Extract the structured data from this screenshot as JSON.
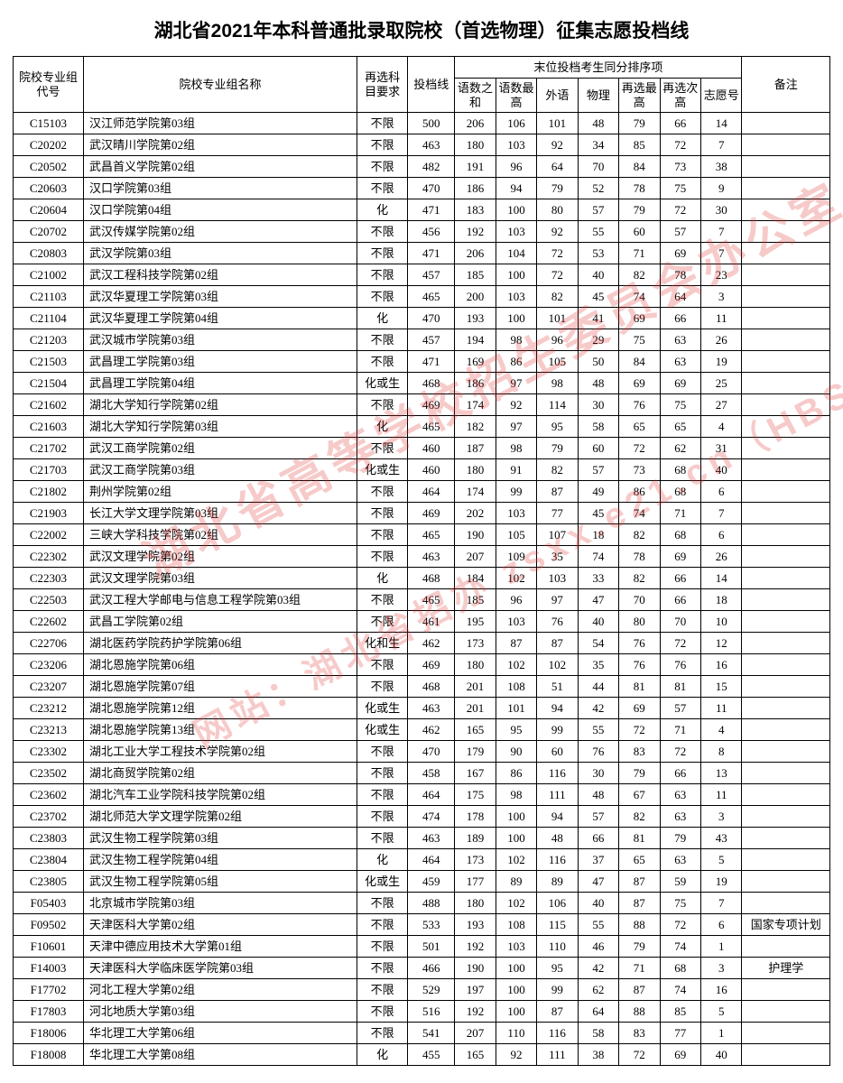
{
  "title": "湖北省2021年本科普通批录取院校（首选物理）征集志愿投档线",
  "watermark1": "湖北省高等学校招生委员会办公室",
  "watermark2": "网站：湖北省招办  zsxx.e21.cn（HBSZS8）",
  "header": {
    "code": "院校专业组代号",
    "name": "院校专业组名称",
    "req": "再选科目要求",
    "line": "投档线",
    "tiegroup": "末位投档考生同分排序项",
    "s1": "语数之和",
    "s2": "语数最高",
    "s3": "外语",
    "s4": "物理",
    "s5": "再选最高",
    "s6": "再选次高",
    "s7": "志愿号",
    "note": "备注"
  },
  "rows": [
    {
      "code": "C15103",
      "name": "汉江师范学院第03组",
      "req": "不限",
      "line": "500",
      "s": [
        "206",
        "106",
        "101",
        "48",
        "79",
        "66",
        "14"
      ],
      "note": ""
    },
    {
      "code": "C20202",
      "name": "武汉晴川学院第02组",
      "req": "不限",
      "line": "463",
      "s": [
        "180",
        "103",
        "92",
        "34",
        "85",
        "72",
        "7"
      ],
      "note": ""
    },
    {
      "code": "C20502",
      "name": "武昌首义学院第02组",
      "req": "不限",
      "line": "482",
      "s": [
        "191",
        "96",
        "64",
        "70",
        "84",
        "73",
        "38"
      ],
      "note": ""
    },
    {
      "code": "C20603",
      "name": "汉口学院第03组",
      "req": "不限",
      "line": "470",
      "s": [
        "186",
        "94",
        "79",
        "52",
        "78",
        "75",
        "9"
      ],
      "note": ""
    },
    {
      "code": "C20604",
      "name": "汉口学院第04组",
      "req": "化",
      "line": "471",
      "s": [
        "183",
        "100",
        "80",
        "57",
        "79",
        "72",
        "30"
      ],
      "note": ""
    },
    {
      "code": "C20702",
      "name": "武汉传媒学院第02组",
      "req": "不限",
      "line": "456",
      "s": [
        "192",
        "103",
        "92",
        "55",
        "60",
        "57",
        "7"
      ],
      "note": ""
    },
    {
      "code": "C20803",
      "name": "武汉学院第03组",
      "req": "不限",
      "line": "471",
      "s": [
        "206",
        "104",
        "72",
        "53",
        "71",
        "69",
        "7"
      ],
      "note": ""
    },
    {
      "code": "C21002",
      "name": "武汉工程科技学院第02组",
      "req": "不限",
      "line": "457",
      "s": [
        "185",
        "100",
        "72",
        "40",
        "82",
        "78",
        "23"
      ],
      "note": ""
    },
    {
      "code": "C21103",
      "name": "武汉华夏理工学院第03组",
      "req": "不限",
      "line": "465",
      "s": [
        "200",
        "103",
        "82",
        "45",
        "74",
        "64",
        "3"
      ],
      "note": ""
    },
    {
      "code": "C21104",
      "name": "武汉华夏理工学院第04组",
      "req": "化",
      "line": "470",
      "s": [
        "193",
        "100",
        "101",
        "41",
        "69",
        "66",
        "11"
      ],
      "note": ""
    },
    {
      "code": "C21203",
      "name": "武汉城市学院第03组",
      "req": "不限",
      "line": "457",
      "s": [
        "194",
        "98",
        "96",
        "29",
        "75",
        "63",
        "26"
      ],
      "note": ""
    },
    {
      "code": "C21503",
      "name": "武昌理工学院第03组",
      "req": "不限",
      "line": "471",
      "s": [
        "169",
        "86",
        "105",
        "50",
        "84",
        "63",
        "19"
      ],
      "note": ""
    },
    {
      "code": "C21504",
      "name": "武昌理工学院第04组",
      "req": "化或生",
      "line": "468",
      "s": [
        "186",
        "97",
        "98",
        "48",
        "69",
        "69",
        "25"
      ],
      "note": ""
    },
    {
      "code": "C21602",
      "name": "湖北大学知行学院第02组",
      "req": "不限",
      "line": "469",
      "s": [
        "174",
        "92",
        "114",
        "30",
        "76",
        "75",
        "27"
      ],
      "note": ""
    },
    {
      "code": "C21603",
      "name": "湖北大学知行学院第03组",
      "req": "化",
      "line": "465",
      "s": [
        "182",
        "97",
        "95",
        "58",
        "65",
        "65",
        "4"
      ],
      "note": ""
    },
    {
      "code": "C21702",
      "name": "武汉工商学院第02组",
      "req": "不限",
      "line": "460",
      "s": [
        "187",
        "98",
        "79",
        "60",
        "72",
        "62",
        "31"
      ],
      "note": ""
    },
    {
      "code": "C21703",
      "name": "武汉工商学院第03组",
      "req": "化或生",
      "line": "460",
      "s": [
        "180",
        "91",
        "82",
        "57",
        "73",
        "68",
        "40"
      ],
      "note": ""
    },
    {
      "code": "C21802",
      "name": "荆州学院第02组",
      "req": "不限",
      "line": "464",
      "s": [
        "174",
        "99",
        "87",
        "49",
        "86",
        "68",
        "6"
      ],
      "note": ""
    },
    {
      "code": "C21903",
      "name": "长江大学文理学院第03组",
      "req": "不限",
      "line": "469",
      "s": [
        "202",
        "103",
        "77",
        "45",
        "74",
        "71",
        "7"
      ],
      "note": ""
    },
    {
      "code": "C22002",
      "name": "三峡大学科技学院第02组",
      "req": "不限",
      "line": "465",
      "s": [
        "190",
        "105",
        "107",
        "18",
        "82",
        "68",
        "6"
      ],
      "note": ""
    },
    {
      "code": "C22302",
      "name": "武汉文理学院第02组",
      "req": "不限",
      "line": "463",
      "s": [
        "207",
        "109",
        "35",
        "74",
        "78",
        "69",
        "26"
      ],
      "note": ""
    },
    {
      "code": "C22303",
      "name": "武汉文理学院第03组",
      "req": "化",
      "line": "468",
      "s": [
        "184",
        "102",
        "103",
        "33",
        "82",
        "66",
        "14"
      ],
      "note": ""
    },
    {
      "code": "C22503",
      "name": "武汉工程大学邮电与信息工程学院第03组",
      "req": "不限",
      "line": "465",
      "s": [
        "185",
        "96",
        "97",
        "47",
        "70",
        "66",
        "18"
      ],
      "note": ""
    },
    {
      "code": "C22602",
      "name": "武昌工学院第02组",
      "req": "不限",
      "line": "461",
      "s": [
        "195",
        "103",
        "76",
        "40",
        "80",
        "70",
        "10"
      ],
      "note": ""
    },
    {
      "code": "C22706",
      "name": "湖北医药学院药护学院第06组",
      "req": "化和生",
      "line": "462",
      "s": [
        "173",
        "87",
        "87",
        "54",
        "76",
        "72",
        "12"
      ],
      "note": ""
    },
    {
      "code": "C23206",
      "name": "湖北恩施学院第06组",
      "req": "不限",
      "line": "469",
      "s": [
        "180",
        "102",
        "102",
        "35",
        "76",
        "76",
        "16"
      ],
      "note": ""
    },
    {
      "code": "C23207",
      "name": "湖北恩施学院第07组",
      "req": "不限",
      "line": "468",
      "s": [
        "201",
        "108",
        "51",
        "44",
        "81",
        "81",
        "15"
      ],
      "note": ""
    },
    {
      "code": "C23212",
      "name": "湖北恩施学院第12组",
      "req": "化或生",
      "line": "463",
      "s": [
        "201",
        "101",
        "94",
        "42",
        "69",
        "57",
        "11"
      ],
      "note": ""
    },
    {
      "code": "C23213",
      "name": "湖北恩施学院第13组",
      "req": "化或生",
      "line": "462",
      "s": [
        "165",
        "95",
        "99",
        "55",
        "72",
        "71",
        "4"
      ],
      "note": ""
    },
    {
      "code": "C23302",
      "name": "湖北工业大学工程技术学院第02组",
      "req": "不限",
      "line": "470",
      "s": [
        "179",
        "90",
        "60",
        "76",
        "83",
        "72",
        "8"
      ],
      "note": ""
    },
    {
      "code": "C23502",
      "name": "湖北商贸学院第02组",
      "req": "不限",
      "line": "458",
      "s": [
        "167",
        "86",
        "116",
        "30",
        "79",
        "66",
        "13"
      ],
      "note": ""
    },
    {
      "code": "C23602",
      "name": "湖北汽车工业学院科技学院第02组",
      "req": "不限",
      "line": "464",
      "s": [
        "175",
        "98",
        "111",
        "48",
        "67",
        "63",
        "11"
      ],
      "note": ""
    },
    {
      "code": "C23702",
      "name": "湖北师范大学文理学院第02组",
      "req": "不限",
      "line": "474",
      "s": [
        "178",
        "100",
        "94",
        "57",
        "82",
        "63",
        "3"
      ],
      "note": ""
    },
    {
      "code": "C23803",
      "name": "武汉生物工程学院第03组",
      "req": "不限",
      "line": "463",
      "s": [
        "189",
        "100",
        "48",
        "66",
        "81",
        "79",
        "43"
      ],
      "note": ""
    },
    {
      "code": "C23804",
      "name": "武汉生物工程学院第04组",
      "req": "化",
      "line": "464",
      "s": [
        "173",
        "102",
        "116",
        "37",
        "65",
        "63",
        "5"
      ],
      "note": ""
    },
    {
      "code": "C23805",
      "name": "武汉生物工程学院第05组",
      "req": "化或生",
      "line": "459",
      "s": [
        "177",
        "89",
        "89",
        "47",
        "87",
        "59",
        "19"
      ],
      "note": ""
    },
    {
      "code": "F05403",
      "name": "北京城市学院第03组",
      "req": "不限",
      "line": "488",
      "s": [
        "180",
        "102",
        "106",
        "40",
        "87",
        "75",
        "7"
      ],
      "note": ""
    },
    {
      "code": "F09502",
      "name": "天津医科大学第02组",
      "req": "不限",
      "line": "533",
      "s": [
        "193",
        "108",
        "115",
        "55",
        "88",
        "72",
        "6"
      ],
      "note": "国家专项计划"
    },
    {
      "code": "F10601",
      "name": "天津中德应用技术大学第01组",
      "req": "不限",
      "line": "501",
      "s": [
        "192",
        "103",
        "110",
        "46",
        "79",
        "74",
        "1"
      ],
      "note": ""
    },
    {
      "code": "F14003",
      "name": "天津医科大学临床医学院第03组",
      "req": "不限",
      "line": "466",
      "s": [
        "190",
        "100",
        "95",
        "42",
        "71",
        "68",
        "3"
      ],
      "note": "护理学"
    },
    {
      "code": "F17702",
      "name": "河北工程大学第02组",
      "req": "不限",
      "line": "529",
      "s": [
        "197",
        "100",
        "99",
        "62",
        "87",
        "74",
        "16"
      ],
      "note": ""
    },
    {
      "code": "F17803",
      "name": "河北地质大学第03组",
      "req": "不限",
      "line": "516",
      "s": [
        "192",
        "100",
        "87",
        "64",
        "88",
        "85",
        "5"
      ],
      "note": ""
    },
    {
      "code": "F18006",
      "name": "华北理工大学第06组",
      "req": "不限",
      "line": "541",
      "s": [
        "207",
        "110",
        "116",
        "58",
        "83",
        "77",
        "1"
      ],
      "note": ""
    },
    {
      "code": "F18008",
      "name": "华北理工大学第08组",
      "req": "化",
      "line": "455",
      "s": [
        "165",
        "92",
        "111",
        "38",
        "72",
        "69",
        "40"
      ],
      "note": ""
    }
  ]
}
